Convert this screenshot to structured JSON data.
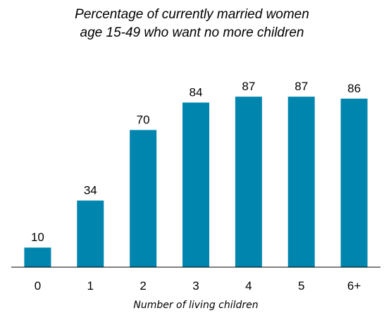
{
  "chart_data": {
    "type": "bar",
    "title": "Percentage of currently married women age 15-49 who want no more children",
    "title_lines": [
      "Percentage of currently married women",
      "age 15-49 who want no more children"
    ],
    "categories": [
      "0",
      "1",
      "2",
      "3",
      "4",
      "5",
      "6+"
    ],
    "values": [
      10,
      34,
      70,
      84,
      87,
      87,
      86
    ],
    "xlabel": "Number of living children",
    "ylabel": "",
    "ylim": [
      0,
      100
    ],
    "grid": false,
    "bar_color": "#0085AE"
  }
}
